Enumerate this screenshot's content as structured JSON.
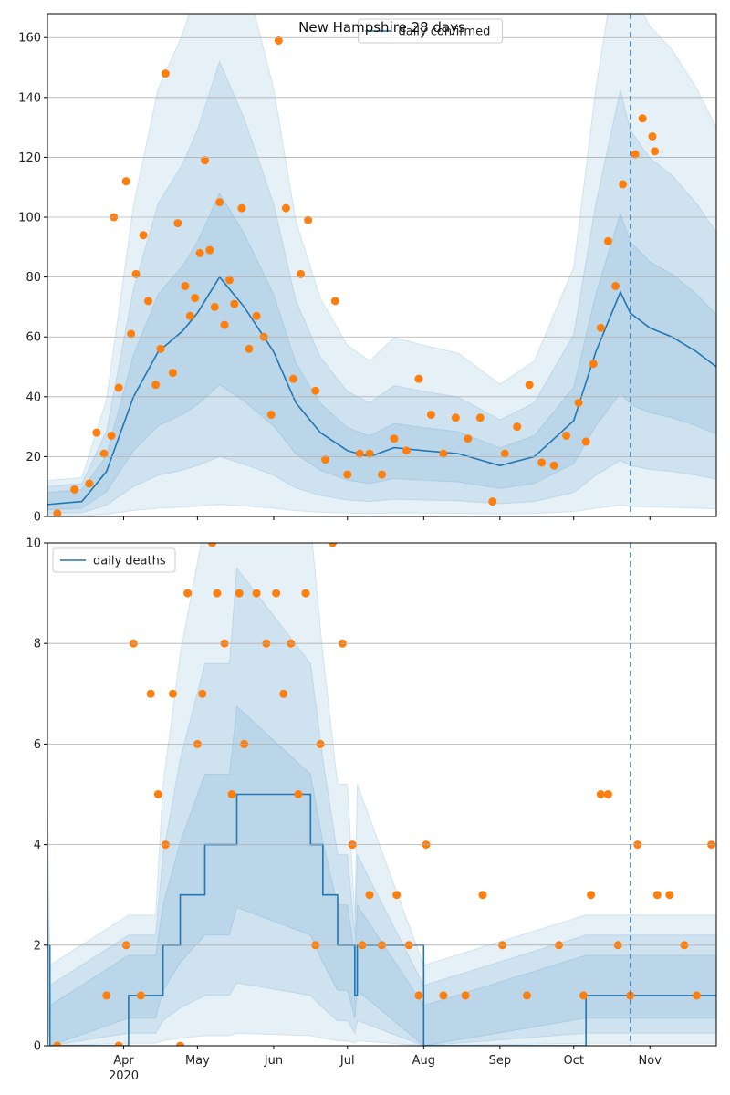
{
  "colors": {
    "line": "#1f77b4",
    "points": "#ff7f0e",
    "band": "#1f77b4",
    "grid": "#b0b0b0",
    "axis": "#000000"
  },
  "chart_data": [
    {
      "type": "line",
      "title": "New Hampshire 28 days",
      "xlabel": "",
      "ylabel": "",
      "x_range": [
        "2020-03-01",
        "2020-11-28"
      ],
      "ylim": [
        0,
        168
      ],
      "yticks": [
        0,
        20,
        40,
        60,
        80,
        100,
        120,
        140,
        160
      ],
      "xticks": [
        {
          "date": "2020-04-01",
          "label": "Apr",
          "sublabel": "2020"
        },
        {
          "date": "2020-05-01",
          "label": "May",
          "sublabel": ""
        },
        {
          "date": "2020-06-01",
          "label": "Jun",
          "sublabel": ""
        },
        {
          "date": "2020-07-01",
          "label": "Jul",
          "sublabel": ""
        },
        {
          "date": "2020-08-01",
          "label": "Aug",
          "sublabel": ""
        },
        {
          "date": "2020-09-01",
          "label": "Sep",
          "sublabel": ""
        },
        {
          "date": "2020-10-01",
          "label": "Oct",
          "sublabel": ""
        },
        {
          "date": "2020-11-01",
          "label": "Nov",
          "sublabel": ""
        }
      ],
      "grid": "horizontal",
      "legend": {
        "placement": "top-center",
        "entries": [
          "daily confirmed"
        ]
      },
      "forecast_start": "2020-10-24",
      "series": [
        {
          "name": "daily confirmed",
          "kind": "line",
          "dates": [
            "2020-03-01",
            "2020-03-15",
            "2020-03-25",
            "2020-04-05",
            "2020-04-15",
            "2020-04-25",
            "2020-05-01",
            "2020-05-10",
            "2020-05-20",
            "2020-06-01",
            "2020-06-10",
            "2020-06-20",
            "2020-07-01",
            "2020-07-10",
            "2020-07-20",
            "2020-08-01",
            "2020-08-15",
            "2020-09-01",
            "2020-09-15",
            "2020-10-01",
            "2020-10-10",
            "2020-10-20",
            "2020-10-24",
            "2020-11-01",
            "2020-11-10",
            "2020-11-20",
            "2020-11-28"
          ],
          "values": [
            4,
            5,
            15,
            40,
            55,
            62,
            68,
            80,
            70,
            55,
            38,
            28,
            22,
            20,
            23,
            22,
            21,
            17,
            20,
            32,
            55,
            75,
            68,
            63,
            60,
            55,
            50
          ]
        },
        {
          "name": "",
          "kind": "points",
          "dates": [
            "2020-03-05",
            "2020-03-12",
            "2020-03-18",
            "2020-03-21",
            "2020-03-24",
            "2020-03-27",
            "2020-03-28",
            "2020-03-30",
            "2020-04-02",
            "2020-04-04",
            "2020-04-06",
            "2020-04-09",
            "2020-04-11",
            "2020-04-14",
            "2020-04-16",
            "2020-04-18",
            "2020-04-21",
            "2020-04-23",
            "2020-04-26",
            "2020-04-28",
            "2020-04-30",
            "2020-05-02",
            "2020-05-04",
            "2020-05-06",
            "2020-05-08",
            "2020-05-10",
            "2020-05-12",
            "2020-05-14",
            "2020-05-16",
            "2020-05-19",
            "2020-05-22",
            "2020-05-25",
            "2020-05-28",
            "2020-05-31",
            "2020-06-03",
            "2020-06-06",
            "2020-06-09",
            "2020-06-12",
            "2020-06-15",
            "2020-06-18",
            "2020-06-22",
            "2020-06-26",
            "2020-07-01",
            "2020-07-06",
            "2020-07-10",
            "2020-07-15",
            "2020-07-20",
            "2020-07-25",
            "2020-07-30",
            "2020-08-04",
            "2020-08-09",
            "2020-08-14",
            "2020-08-19",
            "2020-08-24",
            "2020-08-29",
            "2020-09-03",
            "2020-09-08",
            "2020-09-13",
            "2020-09-18",
            "2020-09-23",
            "2020-09-28",
            "2020-10-03",
            "2020-10-06",
            "2020-10-09",
            "2020-10-12",
            "2020-10-15",
            "2020-10-18",
            "2020-10-21",
            "2020-10-26",
            "2020-10-29",
            "2020-11-02",
            "2020-11-03"
          ],
          "values": [
            1,
            9,
            11,
            28,
            21,
            27,
            100,
            43,
            112,
            61,
            81,
            94,
            72,
            44,
            56,
            148,
            48,
            98,
            77,
            67,
            73,
            88,
            119,
            89,
            70,
            105,
            64,
            79,
            71,
            103,
            56,
            67,
            60,
            34,
            159,
            103,
            46,
            81,
            99,
            42,
            19,
            72,
            14,
            21,
            21,
            14,
            26,
            22,
            46,
            34,
            21,
            33,
            26,
            33,
            5,
            21,
            30,
            44,
            18,
            17,
            27,
            38,
            25,
            51,
            63,
            92,
            77,
            111,
            121,
            133,
            127,
            122
          ]
        }
      ]
    },
    {
      "type": "line",
      "title": "",
      "xlabel": "",
      "ylabel": "",
      "x_range": [
        "2020-03-01",
        "2020-11-28"
      ],
      "ylim": [
        0,
        10
      ],
      "yticks": [
        0,
        2,
        4,
        6,
        8,
        10
      ],
      "xticks": [
        {
          "date": "2020-04-01",
          "label": "Apr",
          "sublabel": "2020"
        },
        {
          "date": "2020-05-01",
          "label": "May",
          "sublabel": ""
        },
        {
          "date": "2020-06-01",
          "label": "Jun",
          "sublabel": ""
        },
        {
          "date": "2020-07-01",
          "label": "Jul",
          "sublabel": ""
        },
        {
          "date": "2020-08-01",
          "label": "Aug",
          "sublabel": ""
        },
        {
          "date": "2020-09-01",
          "label": "Sep",
          "sublabel": ""
        },
        {
          "date": "2020-10-01",
          "label": "Oct",
          "sublabel": ""
        },
        {
          "date": "2020-11-01",
          "label": "Nov",
          "sublabel": ""
        }
      ],
      "grid": "horizontal",
      "legend": {
        "placement": "top-left",
        "entries": [
          "daily deaths"
        ]
      },
      "forecast_start": "2020-10-24",
      "series": [
        {
          "name": "daily deaths",
          "kind": "step",
          "dates": [
            "2020-03-01",
            "2020-03-02",
            "2020-04-03",
            "2020-04-14",
            "2020-04-17",
            "2020-04-24",
            "2020-05-04",
            "2020-05-14",
            "2020-05-17",
            "2020-06-16",
            "2020-06-21",
            "2020-06-27",
            "2020-07-01",
            "2020-07-04",
            "2020-07-05",
            "2020-08-01",
            "2020-10-06",
            "2020-10-25",
            "2020-11-28"
          ],
          "values": [
            2,
            0,
            1,
            1,
            2,
            3,
            4,
            4,
            5,
            4,
            3,
            2,
            2,
            1,
            2,
            0,
            1,
            1,
            1
          ]
        },
        {
          "name": "",
          "kind": "points",
          "dates": [
            "2020-03-05",
            "2020-03-25",
            "2020-03-30",
            "2020-04-02",
            "2020-04-05",
            "2020-04-08",
            "2020-04-12",
            "2020-04-15",
            "2020-04-18",
            "2020-04-21",
            "2020-04-24",
            "2020-04-27",
            "2020-05-01",
            "2020-05-03",
            "2020-05-07",
            "2020-05-09",
            "2020-05-12",
            "2020-05-15",
            "2020-05-18",
            "2020-05-20",
            "2020-05-25",
            "2020-05-29",
            "2020-06-02",
            "2020-06-05",
            "2020-06-08",
            "2020-06-11",
            "2020-06-14",
            "2020-06-18",
            "2020-06-20",
            "2020-06-25",
            "2020-06-29",
            "2020-07-03",
            "2020-07-07",
            "2020-07-10",
            "2020-07-15",
            "2020-07-21",
            "2020-07-26",
            "2020-07-30",
            "2020-08-02",
            "2020-08-09",
            "2020-08-18",
            "2020-08-25",
            "2020-09-02",
            "2020-09-12",
            "2020-09-25",
            "2020-10-05",
            "2020-10-08",
            "2020-10-12",
            "2020-10-15",
            "2020-10-19",
            "2020-10-24",
            "2020-10-27",
            "2020-11-04",
            "2020-11-09",
            "2020-11-15",
            "2020-11-20",
            "2020-11-26"
          ],
          "values": [
            0,
            1,
            0,
            2,
            8,
            1,
            7,
            5,
            4,
            7,
            0,
            9,
            6,
            7,
            10,
            9,
            8,
            5,
            9,
            6,
            9,
            8,
            9,
            7,
            8,
            5,
            9,
            2,
            6,
            10,
            8,
            4,
            2,
            3,
            2,
            3,
            2,
            1,
            4,
            1,
            1,
            3,
            2,
            1,
            2,
            1,
            3,
            5,
            5,
            2,
            1,
            4,
            3,
            3,
            2,
            1,
            4
          ]
        }
      ]
    }
  ]
}
